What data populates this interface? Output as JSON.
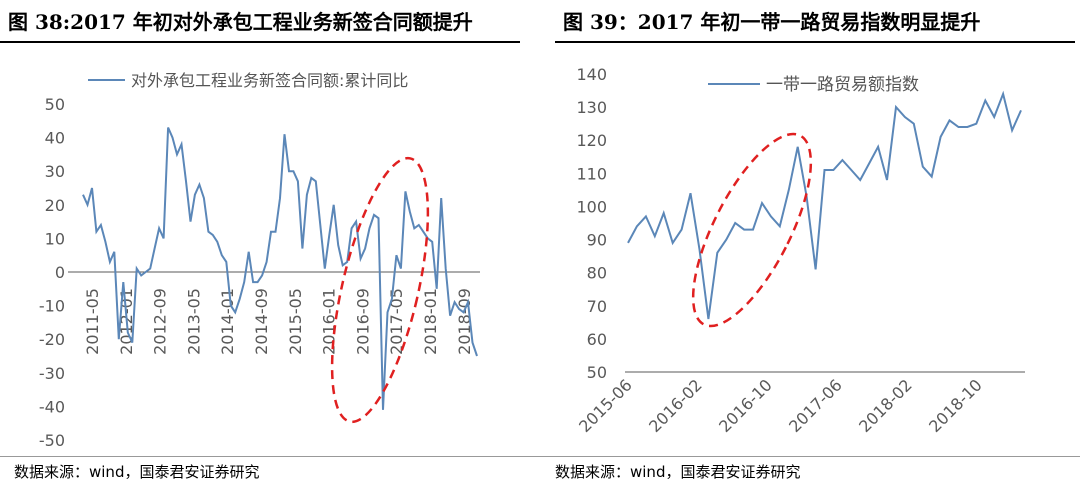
{
  "left": {
    "title": "图 38:2017 年初对外承包工程业务新签合同额提升",
    "source": "数据来源：wind，国泰君安证券研究"
  },
  "right": {
    "title": "图 39：2017 年初一带一路贸易指数明显提升",
    "source": "数据来源：wind，国泰君安证券研究"
  },
  "colors": {
    "series": "#5b87b8",
    "highlight": "#e02020",
    "axis": "#595959"
  },
  "chart_data": [
    {
      "type": "line",
      "legend": "top-center",
      "series": [
        {
          "name": "对外承包工程业务新签合同额:累计同比",
          "values": [
            23,
            20,
            25,
            12,
            14,
            9,
            3,
            6,
            -20,
            -3,
            -18,
            -21,
            1,
            -1,
            0,
            1,
            7,
            13,
            10,
            43,
            40,
            35,
            38,
            27,
            15,
            23,
            26,
            22,
            12,
            11,
            9,
            5,
            3,
            -10,
            -12,
            -8,
            -3,
            6,
            -3,
            -3,
            -1,
            3,
            12,
            12,
            22,
            41,
            30,
            30,
            27,
            7,
            23,
            28,
            27,
            14,
            1,
            11,
            20,
            8,
            2,
            3,
            13,
            15,
            4,
            7,
            13,
            17,
            16,
            -41,
            -12,
            -8,
            5,
            1,
            24,
            18,
            13,
            14,
            12,
            10,
            9,
            -5,
            22,
            1,
            -13,
            -9,
            -11,
            -12,
            -9,
            -21,
            -25
          ]
        }
      ],
      "x": {
        "ticks": [
          "2011-05",
          "2012-01",
          "2012-09",
          "2013-05",
          "2014-01",
          "2014-09",
          "2015-05",
          "2016-01",
          "2016-09",
          "2017-05",
          "2018-01",
          "2018-09"
        ]
      },
      "ylim": [
        -50,
        50
      ],
      "yticks": [
        -50,
        -40,
        -30,
        -20,
        -10,
        0,
        10,
        20,
        30,
        40,
        50
      ],
      "grid": false
    },
    {
      "type": "line",
      "legend": "top-center",
      "series": [
        {
          "name": "一带一路贸易额指数",
          "values": [
            89,
            94,
            97,
            91,
            98,
            89,
            93,
            104,
            87,
            66,
            86,
            90,
            95,
            93,
            93,
            101,
            97,
            94,
            105,
            118,
            103,
            81,
            111,
            111,
            114,
            111,
            108,
            113,
            118,
            108,
            130,
            127,
            125,
            112,
            109,
            121,
            126,
            124,
            124,
            125,
            132,
            127,
            134,
            123,
            129
          ]
        }
      ],
      "x": {
        "ticks": [
          "2015-06",
          "2016-02",
          "2016-10",
          "2017-06",
          "2018-02",
          "2018-10"
        ]
      },
      "ylim": [
        50,
        140
      ],
      "yticks": [
        50,
        60,
        70,
        80,
        90,
        100,
        110,
        120,
        130,
        140
      ],
      "grid": false
    }
  ]
}
